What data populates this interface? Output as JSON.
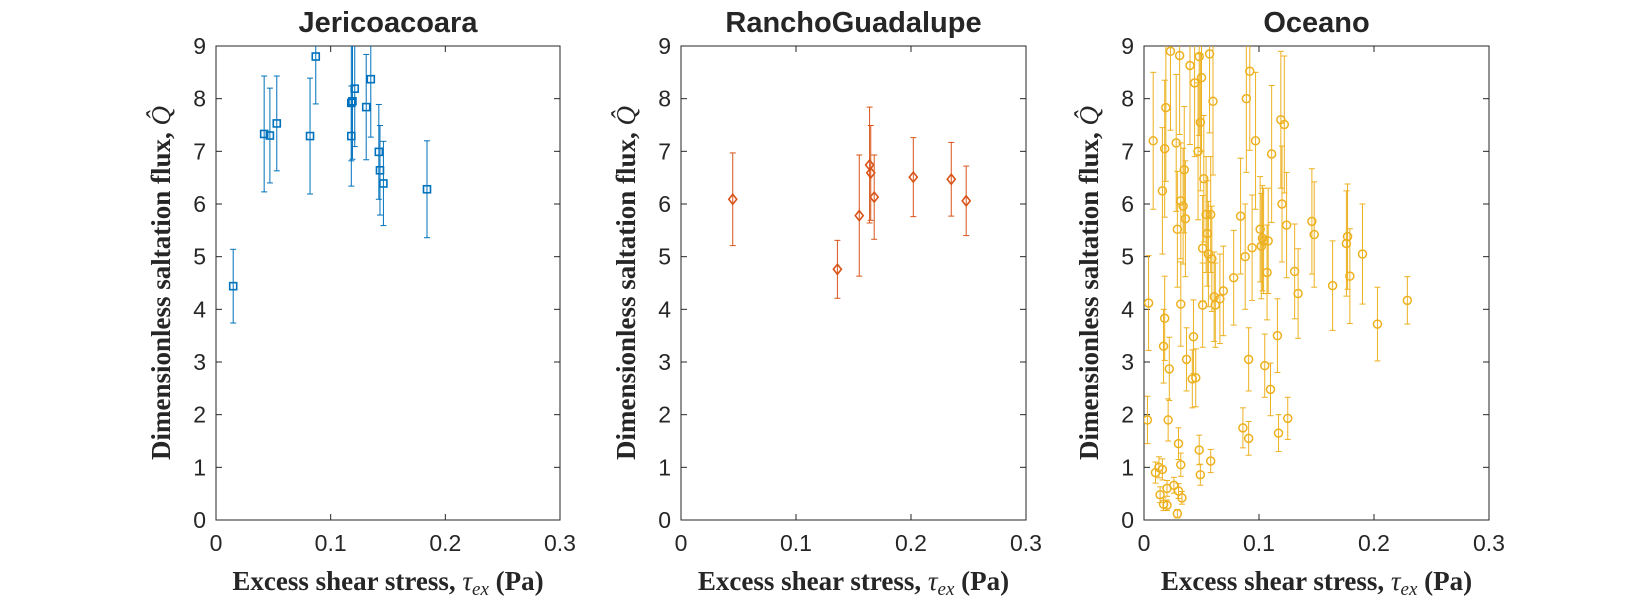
{
  "chart_data": [
    {
      "type": "scatter",
      "title": "Jericoacoara",
      "xlabel_prefix": "Excess shear stress, ",
      "xlabel_symbol": "τ",
      "xlabel_subscript": "ex",
      "xlabel_suffix": " (Pa)",
      "ylabel_prefix": "Dimensionless saltation flux, ",
      "ylabel_symbol": "Q̂",
      "xlim": [
        0,
        0.3
      ],
      "ylim": [
        0,
        9
      ],
      "xticks": [
        "0",
        "0.1",
        "0.2",
        "0.3"
      ],
      "yticks": [
        "0",
        "1",
        "2",
        "3",
        "4",
        "5",
        "6",
        "7",
        "8",
        "9"
      ],
      "color": "#0072BD",
      "marker": "square",
      "grid": false,
      "points": [
        {
          "x": 0.015,
          "y": 4.44,
          "err": 0.7
        },
        {
          "x": 0.042,
          "y": 7.33,
          "err": 1.1
        },
        {
          "x": 0.047,
          "y": 7.3,
          "err": 0.9
        },
        {
          "x": 0.053,
          "y": 7.53,
          "err": 0.9
        },
        {
          "x": 0.082,
          "y": 7.29,
          "err": 1.1
        },
        {
          "x": 0.087,
          "y": 8.8,
          "err": 0.9
        },
        {
          "x": 0.118,
          "y": 7.29,
          "err": 0.95
        },
        {
          "x": 0.118,
          "y": 7.92,
          "err": 1.1
        },
        {
          "x": 0.119,
          "y": 7.95,
          "err": 1.1
        },
        {
          "x": 0.121,
          "y": 8.19,
          "err": 1.1
        },
        {
          "x": 0.131,
          "y": 7.84,
          "err": 1.0
        },
        {
          "x": 0.135,
          "y": 8.37,
          "err": 1.1
        },
        {
          "x": 0.142,
          "y": 6.99,
          "err": 0.9
        },
        {
          "x": 0.143,
          "y": 6.64,
          "err": 0.85
        },
        {
          "x": 0.146,
          "y": 6.39,
          "err": 0.8
        },
        {
          "x": 0.184,
          "y": 6.28,
          "err": 0.92
        }
      ]
    },
    {
      "type": "scatter",
      "title": "RanchoGuadalupe",
      "xlabel_prefix": "Excess shear stress, ",
      "xlabel_symbol": "τ",
      "xlabel_subscript": "ex",
      "xlabel_suffix": " (Pa)",
      "ylabel_prefix": "Dimensionless saltation flux, ",
      "ylabel_symbol": "Q̂",
      "xlim": [
        0,
        0.3
      ],
      "ylim": [
        0,
        9
      ],
      "xticks": [
        "0",
        "0.1",
        "0.2",
        "0.3"
      ],
      "yticks": [
        "0",
        "1",
        "2",
        "3",
        "4",
        "5",
        "6",
        "7",
        "8",
        "9"
      ],
      "color": "#D95319",
      "marker": "diamond",
      "grid": false,
      "points": [
        {
          "x": 0.045,
          "y": 6.09,
          "err": 0.88
        },
        {
          "x": 0.136,
          "y": 4.76,
          "err": 0.55
        },
        {
          "x": 0.155,
          "y": 5.78,
          "err": 1.15
        },
        {
          "x": 0.164,
          "y": 6.74,
          "err": 1.1
        },
        {
          "x": 0.165,
          "y": 6.59,
          "err": 0.9
        },
        {
          "x": 0.168,
          "y": 6.13,
          "err": 0.8
        },
        {
          "x": 0.202,
          "y": 6.51,
          "err": 0.75
        },
        {
          "x": 0.235,
          "y": 6.47,
          "err": 0.7
        },
        {
          "x": 0.248,
          "y": 6.06,
          "err": 0.66
        }
      ]
    },
    {
      "type": "scatter",
      "title": "Oceano",
      "xlabel_prefix": "Excess shear stress, ",
      "xlabel_symbol": "τ",
      "xlabel_subscript": "ex",
      "xlabel_suffix": " (Pa)",
      "ylabel_prefix": "Dimensionless saltation flux, ",
      "ylabel_symbol": "Q̂",
      "xlim": [
        0,
        0.3
      ],
      "ylim": [
        0,
        9
      ],
      "xticks": [
        "0",
        "0.1",
        "0.2",
        "0.3"
      ],
      "yticks": [
        "0",
        "1",
        "2",
        "3",
        "4",
        "5",
        "6",
        "7",
        "8",
        "9"
      ],
      "color": "#EDB120",
      "marker": "circle",
      "grid": false,
      "points": [
        {
          "x": 0.003,
          "y": 1.9,
          "err": 0.45
        },
        {
          "x": 0.004,
          "y": 4.12,
          "err": 0.9
        },
        {
          "x": 0.008,
          "y": 7.2,
          "err": 1.3
        },
        {
          "x": 0.01,
          "y": 0.9,
          "err": 0.2
        },
        {
          "x": 0.013,
          "y": 1.0,
          "err": 0.2
        },
        {
          "x": 0.014,
          "y": 0.48,
          "err": 0.15
        },
        {
          "x": 0.016,
          "y": 0.96,
          "err": 0.2
        },
        {
          "x": 0.016,
          "y": 6.25,
          "err": 1.2
        },
        {
          "x": 0.017,
          "y": 0.3,
          "err": 0.12
        },
        {
          "x": 0.017,
          "y": 3.3,
          "err": 0.7
        },
        {
          "x": 0.018,
          "y": 3.83,
          "err": 0.8
        },
        {
          "x": 0.018,
          "y": 7.05,
          "err": 1.3
        },
        {
          "x": 0.019,
          "y": 7.83,
          "err": 1.4
        },
        {
          "x": 0.02,
          "y": 0.6,
          "err": 0.15
        },
        {
          "x": 0.02,
          "y": 0.28,
          "err": 0.1
        },
        {
          "x": 0.021,
          "y": 1.9,
          "err": 0.4
        },
        {
          "x": 0.022,
          "y": 2.87,
          "err": 0.6
        },
        {
          "x": 0.023,
          "y": 8.9,
          "err": 1.5
        },
        {
          "x": 0.026,
          "y": 0.66,
          "err": 0.15
        },
        {
          "x": 0.028,
          "y": 7.16,
          "err": 1.3
        },
        {
          "x": 0.029,
          "y": 5.52,
          "err": 1.1
        },
        {
          "x": 0.029,
          "y": 0.12,
          "err": 0.08
        },
        {
          "x": 0.03,
          "y": 1.45,
          "err": 0.3
        },
        {
          "x": 0.03,
          "y": 0.55,
          "err": 0.14
        },
        {
          "x": 0.031,
          "y": 8.82,
          "err": 1.5
        },
        {
          "x": 0.032,
          "y": 1.05,
          "err": 0.22
        },
        {
          "x": 0.032,
          "y": 4.1,
          "err": 0.8
        },
        {
          "x": 0.032,
          "y": 6.06,
          "err": 1.1
        },
        {
          "x": 0.033,
          "y": 0.42,
          "err": 0.12
        },
        {
          "x": 0.034,
          "y": 5.96,
          "err": 1.1
        },
        {
          "x": 0.035,
          "y": 6.65,
          "err": 1.2
        },
        {
          "x": 0.036,
          "y": 5.72,
          "err": 1.1
        },
        {
          "x": 0.037,
          "y": 3.05,
          "err": 0.6
        },
        {
          "x": 0.04,
          "y": 8.63,
          "err": 1.5
        },
        {
          "x": 0.042,
          "y": 2.68,
          "err": 0.55
        },
        {
          "x": 0.043,
          "y": 3.48,
          "err": 0.7
        },
        {
          "x": 0.044,
          "y": 8.3,
          "err": 1.4
        },
        {
          "x": 0.045,
          "y": 2.7,
          "err": 0.55
        },
        {
          "x": 0.047,
          "y": 7.0,
          "err": 1.3
        },
        {
          "x": 0.048,
          "y": 1.33,
          "err": 0.28
        },
        {
          "x": 0.048,
          "y": 8.8,
          "err": 1.5
        },
        {
          "x": 0.049,
          "y": 7.55,
          "err": 1.3
        },
        {
          "x": 0.049,
          "y": 0.86,
          "err": 0.2
        },
        {
          "x": 0.05,
          "y": 8.4,
          "err": 1.4
        },
        {
          "x": 0.051,
          "y": 5.16,
          "err": 1.0
        },
        {
          "x": 0.051,
          "y": 4.08,
          "err": 0.8
        },
        {
          "x": 0.052,
          "y": 6.48,
          "err": 1.2
        },
        {
          "x": 0.054,
          "y": 5.8,
          "err": 1.1
        },
        {
          "x": 0.055,
          "y": 5.44,
          "err": 1.0
        },
        {
          "x": 0.056,
          "y": 5.05,
          "err": 1.0
        },
        {
          "x": 0.057,
          "y": 8.85,
          "err": 1.5
        },
        {
          "x": 0.058,
          "y": 5.8,
          "err": 1.1
        },
        {
          "x": 0.058,
          "y": 1.12,
          "err": 0.22
        },
        {
          "x": 0.059,
          "y": 4.96,
          "err": 1.0
        },
        {
          "x": 0.06,
          "y": 7.95,
          "err": 1.4
        },
        {
          "x": 0.061,
          "y": 4.24,
          "err": 0.85
        },
        {
          "x": 0.062,
          "y": 4.08,
          "err": 0.8
        },
        {
          "x": 0.066,
          "y": 4.2,
          "err": 0.85
        },
        {
          "x": 0.069,
          "y": 4.35,
          "err": 0.85
        },
        {
          "x": 0.078,
          "y": 4.6,
          "err": 0.9
        },
        {
          "x": 0.084,
          "y": 5.77,
          "err": 1.1
        },
        {
          "x": 0.086,
          "y": 1.75,
          "err": 0.38
        },
        {
          "x": 0.088,
          "y": 5.0,
          "err": 1.0
        },
        {
          "x": 0.089,
          "y": 8.0,
          "err": 1.4
        },
        {
          "x": 0.091,
          "y": 3.05,
          "err": 0.6
        },
        {
          "x": 0.091,
          "y": 1.55,
          "err": 0.32
        },
        {
          "x": 0.092,
          "y": 8.52,
          "err": 1.5
        },
        {
          "x": 0.094,
          "y": 5.17,
          "err": 1.0
        },
        {
          "x": 0.097,
          "y": 7.2,
          "err": 1.3
        },
        {
          "x": 0.101,
          "y": 5.52,
          "err": 1.0
        },
        {
          "x": 0.102,
          "y": 5.2,
          "err": 1.0
        },
        {
          "x": 0.103,
          "y": 5.35,
          "err": 1.0
        },
        {
          "x": 0.104,
          "y": 5.3,
          "err": 1.0
        },
        {
          "x": 0.105,
          "y": 2.93,
          "err": 0.6
        },
        {
          "x": 0.107,
          "y": 4.7,
          "err": 0.9
        },
        {
          "x": 0.108,
          "y": 5.3,
          "err": 1.0
        },
        {
          "x": 0.11,
          "y": 2.48,
          "err": 0.5
        },
        {
          "x": 0.111,
          "y": 6.95,
          "err": 1.3
        },
        {
          "x": 0.116,
          "y": 3.5,
          "err": 0.7
        },
        {
          "x": 0.117,
          "y": 1.65,
          "err": 0.35
        },
        {
          "x": 0.119,
          "y": 7.6,
          "err": 1.3
        },
        {
          "x": 0.12,
          "y": 6.0,
          "err": 1.1
        },
        {
          "x": 0.122,
          "y": 7.51,
          "err": 1.3
        },
        {
          "x": 0.124,
          "y": 5.6,
          "err": 1.0
        },
        {
          "x": 0.125,
          "y": 1.93,
          "err": 0.4
        },
        {
          "x": 0.131,
          "y": 4.72,
          "err": 0.9
        },
        {
          "x": 0.134,
          "y": 4.3,
          "err": 0.85
        },
        {
          "x": 0.146,
          "y": 5.67,
          "err": 1.0
        },
        {
          "x": 0.148,
          "y": 5.42,
          "err": 1.0
        },
        {
          "x": 0.164,
          "y": 4.45,
          "err": 0.85
        },
        {
          "x": 0.176,
          "y": 5.25,
          "err": 1.0
        },
        {
          "x": 0.177,
          "y": 5.38,
          "err": 1.0
        },
        {
          "x": 0.179,
          "y": 4.63,
          "err": 0.9
        },
        {
          "x": 0.19,
          "y": 5.05,
          "err": 0.95
        },
        {
          "x": 0.203,
          "y": 3.72,
          "err": 0.7
        },
        {
          "x": 0.229,
          "y": 4.17,
          "err": 0.45
        }
      ]
    }
  ]
}
